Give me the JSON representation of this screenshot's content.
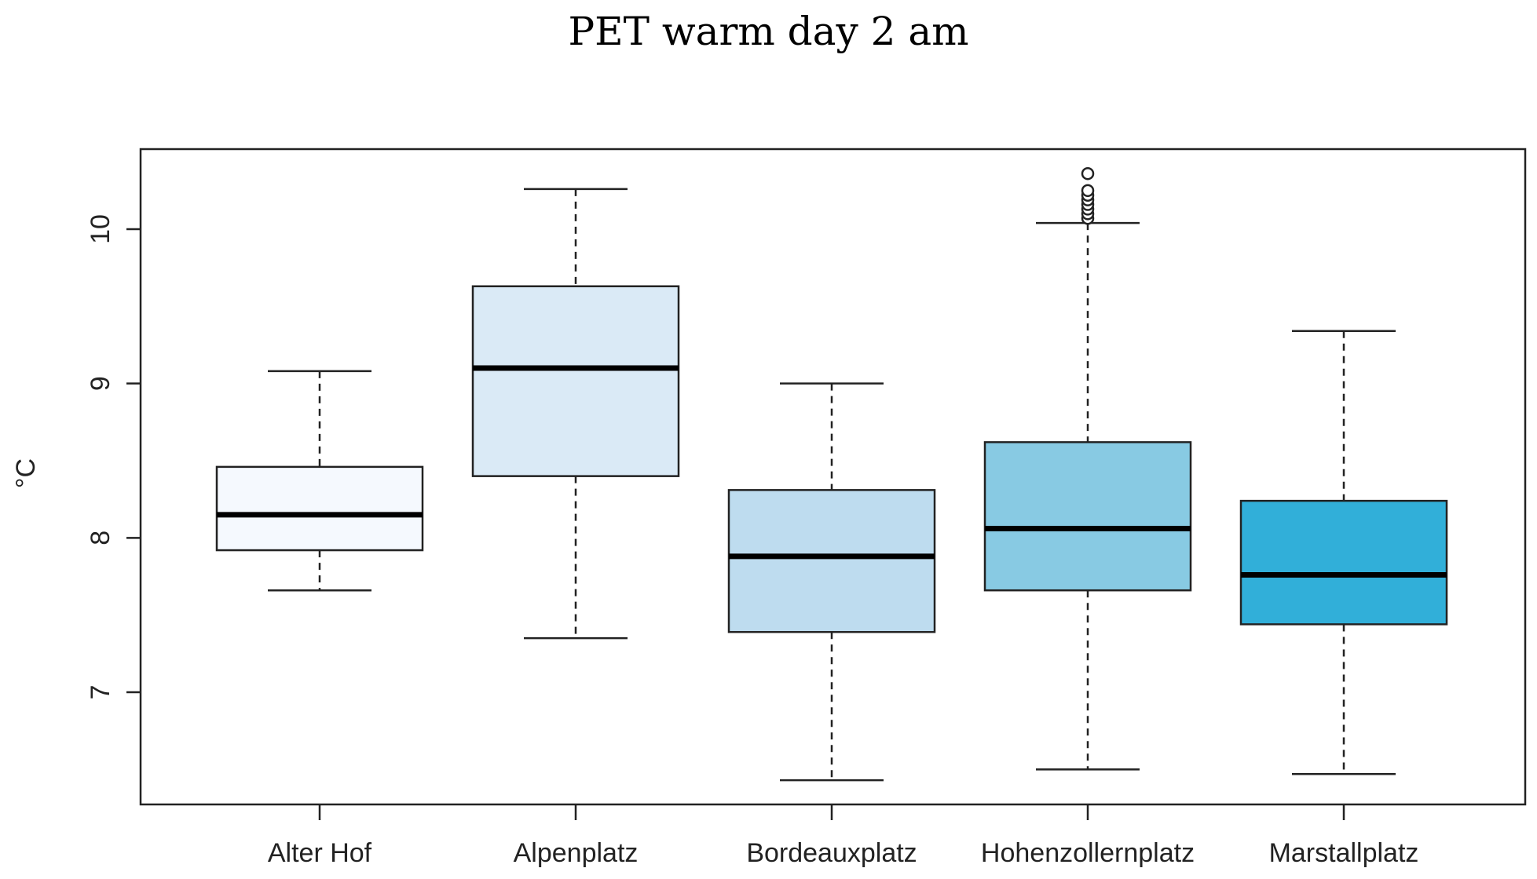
{
  "chart_data": {
    "type": "boxplot",
    "title": "PET warm day 2 am",
    "xlabel": "",
    "ylabel": "°C",
    "ylim": [
      6.3,
      10.5
    ],
    "yticks": [
      7,
      8,
      9,
      10
    ],
    "ytick_labels": [
      "7",
      "8",
      "9",
      "10"
    ],
    "categories": [
      "Alter Hof",
      "Alpenplatz",
      "Bordeauxplatz",
      "Hohenzollernplatz",
      "Marstallplatz"
    ],
    "boxes": [
      {
        "name": "Alter Hof",
        "whisker_low": 7.66,
        "q1": 7.92,
        "median": 8.15,
        "q3": 8.46,
        "whisker_high": 9.08,
        "color": "#f5f9fe",
        "outliers": []
      },
      {
        "name": "Alpenplatz",
        "whisker_low": 7.35,
        "q1": 8.4,
        "median": 9.1,
        "q3": 9.63,
        "whisker_high": 10.26,
        "color": "#daeaf6",
        "outliers": []
      },
      {
        "name": "Bordeauxplatz",
        "whisker_low": 6.43,
        "q1": 7.39,
        "median": 7.88,
        "q3": 8.31,
        "whisker_high": 9.0,
        "color": "#bedcef",
        "outliers": []
      },
      {
        "name": "Hohenzollernplatz",
        "whisker_low": 6.5,
        "q1": 7.66,
        "median": 8.06,
        "q3": 8.62,
        "whisker_high": 10.04,
        "color": "#88cae3",
        "outliers": [
          10.07,
          10.1,
          10.13,
          10.16,
          10.19,
          10.22,
          10.25,
          10.36
        ]
      },
      {
        "name": "Marstallplatz",
        "whisker_low": 6.47,
        "q1": 7.44,
        "median": 7.76,
        "q3": 8.24,
        "whisker_high": 9.34,
        "color": "#31afd9",
        "outliers": []
      }
    ]
  }
}
